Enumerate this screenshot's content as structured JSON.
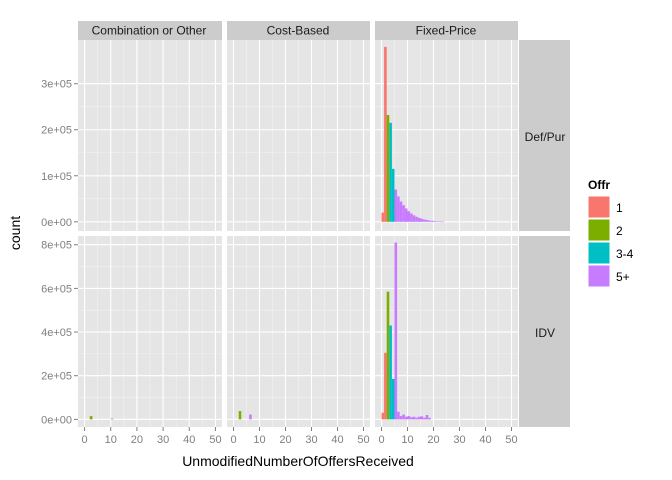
{
  "chart_data": {
    "type": "histogram",
    "xlabel": "UnmodifiedNumberOfOffersReceived",
    "ylabel": "count",
    "col_facets": [
      "Combination or Other",
      "Cost-Based",
      "Fixed-Price"
    ],
    "row_facets": [
      "Def/Pur",
      "IDV"
    ],
    "x_ticks": [
      0,
      10,
      20,
      30,
      40,
      50
    ],
    "xlim": [
      -2.5,
      52.5
    ],
    "row_y": [
      {
        "ylim": [
          -20000,
          395000
        ],
        "ticks": [
          0,
          100000,
          200000,
          300000
        ],
        "tick_labels": [
          "0e+00",
          "1e+05",
          "2e+05",
          "3e+05"
        ]
      },
      {
        "ylim": [
          -35000,
          840000
        ],
        "ticks": [
          0,
          200000,
          400000,
          600000,
          800000
        ],
        "tick_labels": [
          "0e+00",
          "2e+05",
          "4e+05",
          "6e+05",
          "8e+05"
        ]
      }
    ],
    "legend": {
      "title": "Offr",
      "position": "right",
      "entries": [
        {
          "label": "1",
          "color": "#F8766D"
        },
        {
          "label": "2",
          "color": "#7CAE00"
        },
        {
          "label": "3-4",
          "color": "#00BFC4"
        },
        {
          "label": "5+",
          "color": "#C77CFF"
        }
      ]
    },
    "bin_width": 1,
    "series": [
      {
        "row": "Def/Pur",
        "col": "Fixed-Price",
        "group": "1",
        "bars": [
          [
            0,
            20000
          ],
          [
            1,
            380000
          ]
        ]
      },
      {
        "row": "Def/Pur",
        "col": "Fixed-Price",
        "group": "2",
        "bars": [
          [
            2,
            232000
          ]
        ]
      },
      {
        "row": "Def/Pur",
        "col": "Fixed-Price",
        "group": "3-4",
        "bars": [
          [
            3,
            215000
          ],
          [
            4,
            115000
          ]
        ]
      },
      {
        "row": "Def/Pur",
        "col": "Fixed-Price",
        "group": "5+",
        "bars": [
          [
            5,
            70000
          ],
          [
            6,
            55000
          ],
          [
            7,
            44000
          ],
          [
            8,
            36000
          ],
          [
            9,
            29000
          ],
          [
            10,
            23000
          ],
          [
            11,
            18000
          ],
          [
            12,
            14000
          ],
          [
            13,
            11000
          ],
          [
            14,
            8500
          ],
          [
            15,
            6500
          ],
          [
            16,
            5000
          ],
          [
            17,
            3800
          ],
          [
            18,
            2800
          ],
          [
            19,
            2000
          ],
          [
            20,
            1500
          ],
          [
            21,
            1000
          ],
          [
            22,
            700
          ],
          [
            23,
            400
          ]
        ]
      },
      {
        "row": "IDV",
        "col": "Combination or Other",
        "group": "2",
        "bars": [
          [
            2,
            15000
          ]
        ]
      },
      {
        "row": "IDV",
        "col": "Combination or Other",
        "group": "5+",
        "bars": [
          [
            10,
            4000
          ]
        ]
      },
      {
        "row": "IDV",
        "col": "Cost-Based",
        "group": "2",
        "bars": [
          [
            2,
            38000
          ]
        ]
      },
      {
        "row": "IDV",
        "col": "Cost-Based",
        "group": "5+",
        "bars": [
          [
            6,
            22000
          ]
        ]
      },
      {
        "row": "IDV",
        "col": "Fixed-Price",
        "group": "1",
        "bars": [
          [
            0,
            30000
          ],
          [
            1,
            305000
          ]
        ]
      },
      {
        "row": "IDV",
        "col": "Fixed-Price",
        "group": "2",
        "bars": [
          [
            2,
            585000
          ]
        ]
      },
      {
        "row": "IDV",
        "col": "Fixed-Price",
        "group": "3-4",
        "bars": [
          [
            3,
            430000
          ],
          [
            4,
            185000
          ]
        ]
      },
      {
        "row": "IDV",
        "col": "Fixed-Price",
        "group": "5+",
        "bars": [
          [
            5,
            810000
          ],
          [
            6,
            35000
          ],
          [
            7,
            15000
          ],
          [
            8,
            22000
          ],
          [
            9,
            12000
          ],
          [
            10,
            15000
          ],
          [
            11,
            10000
          ],
          [
            12,
            12000
          ],
          [
            13,
            8000
          ],
          [
            14,
            12000
          ],
          [
            15,
            14000
          ],
          [
            16,
            8000
          ],
          [
            17,
            20000
          ],
          [
            18,
            7000
          ]
        ]
      }
    ],
    "grid": true,
    "panel_background": "#E5E5E5",
    "strip_background": "#CCCCCC",
    "grid_major_color": "#FFFFFF",
    "grid_minor_color": "#F2F2F2"
  }
}
